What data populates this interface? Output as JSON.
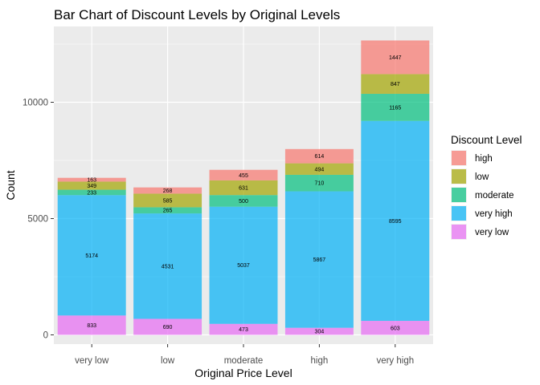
{
  "chart_data": {
    "type": "bar",
    "stacked": true,
    "title": "Bar Chart of Discount Levels by Original Levels",
    "xlabel": "Original Price Level",
    "ylabel": "Count",
    "categories": [
      "very low",
      "low",
      "moderate",
      "high",
      "very high"
    ],
    "ylim": [
      0,
      12700
    ],
    "yticks": [
      0,
      5000,
      10000
    ],
    "grid": true,
    "legend": {
      "title": "Discount Level",
      "position": "right"
    },
    "series": [
      {
        "name": "high",
        "color": "#F8766D",
        "values": [
          163,
          268,
          455,
          614,
          1447
        ]
      },
      {
        "name": "low",
        "color": "#A3A500",
        "values": [
          349,
          585,
          631,
          494,
          847
        ]
      },
      {
        "name": "moderate",
        "color": "#00BF7D",
        "values": [
          233,
          265,
          500,
          710,
          1165
        ]
      },
      {
        "name": "very high",
        "color": "#00B0F6",
        "values": [
          5174,
          4531,
          5037,
          5867,
          8595
        ]
      },
      {
        "name": "very low",
        "color": "#E76BF3",
        "values": [
          833,
          690,
          473,
          304,
          603
        ]
      }
    ]
  }
}
